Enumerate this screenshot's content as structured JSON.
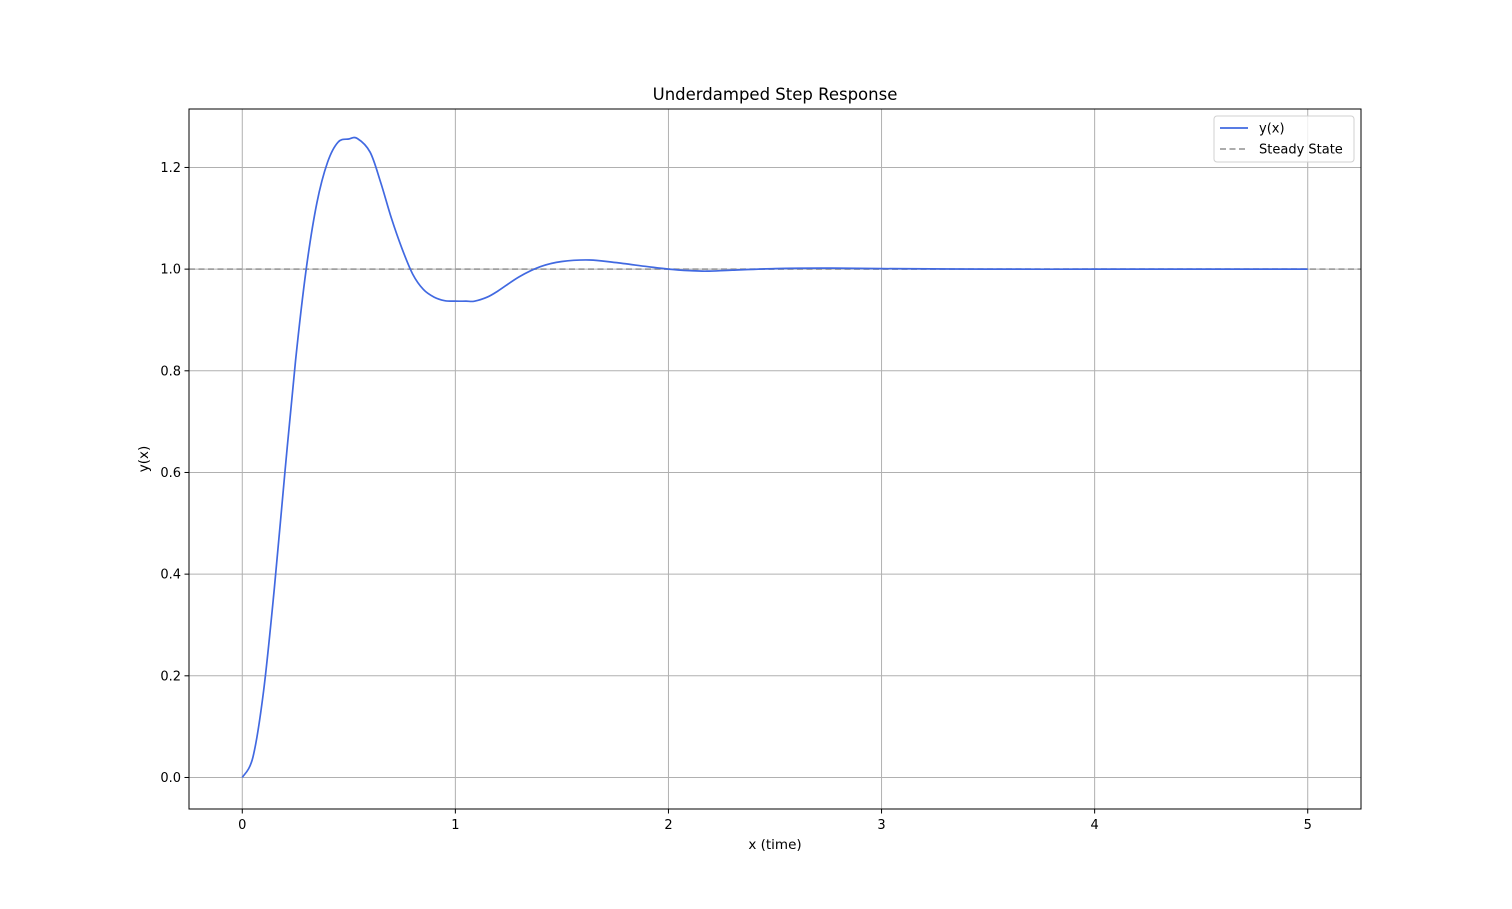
{
  "chart_data": {
    "type": "line",
    "title": "Underdamped Step Response",
    "xlabel": "x (time)",
    "ylabel": "y(x)",
    "xlim": [
      -0.25,
      5.25
    ],
    "ylim": [
      -0.062,
      1.315
    ],
    "xticks": [
      0,
      1,
      2,
      3,
      4,
      5
    ],
    "xtick_labels": [
      "0",
      "1",
      "2",
      "3",
      "4",
      "5"
    ],
    "yticks": [
      0.0,
      0.2,
      0.4,
      0.6,
      0.8,
      1.0,
      1.2
    ],
    "ytick_labels": [
      "0.0",
      "0.2",
      "0.4",
      "0.6",
      "0.8",
      "1.0",
      "1.2"
    ],
    "grid": true,
    "legend": {
      "position": "top-right"
    },
    "series": [
      {
        "name": "y(x)",
        "color": "#4169e1",
        "style": "solid",
        "x": [
          0,
          0.05,
          0.1,
          0.15,
          0.2,
          0.25,
          0.3,
          0.35,
          0.4,
          0.45,
          0.5,
          0.54,
          0.6,
          0.65,
          0.7,
          0.75,
          0.8,
          0.85,
          0.9,
          0.95,
          1.0,
          1.05,
          1.09,
          1.15,
          1.2,
          1.3,
          1.4,
          1.5,
          1.63,
          1.75,
          1.9,
          2.0,
          2.1,
          2.18,
          2.3,
          2.5,
          2.72,
          3.0,
          3.5,
          4.0,
          4.5,
          5.0
        ],
        "values": [
          0.0,
          0.04,
          0.17,
          0.37,
          0.6,
          0.82,
          1.0,
          1.13,
          1.21,
          1.25,
          1.256,
          1.257,
          1.23,
          1.17,
          1.1,
          1.04,
          0.99,
          0.96,
          0.945,
          0.938,
          0.937,
          0.937,
          0.937,
          0.945,
          0.957,
          0.985,
          1.005,
          1.015,
          1.018,
          1.013,
          1.005,
          1.0,
          0.997,
          0.996,
          0.998,
          1.001,
          1.002,
          1.001,
          1.0,
          1.0,
          1.0,
          1.0
        ]
      },
      {
        "name": "Steady State",
        "color": "#a0a0a0",
        "style": "dashed",
        "x": [
          -0.25,
          5.25
        ],
        "values": [
          1.0,
          1.0
        ]
      }
    ]
  }
}
